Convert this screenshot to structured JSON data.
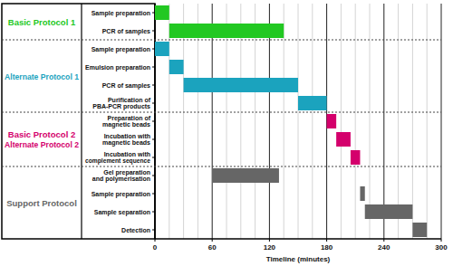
{
  "chart_data": {
    "type": "gantt",
    "x_label": "Timeline (minutes)",
    "xlim": [
      0,
      300
    ],
    "xticks": [
      0,
      60,
      120,
      180,
      240,
      300
    ],
    "grid": true,
    "groups": [
      {
        "name": [
          "Basic Protocol 1"
        ],
        "color": "#22c822",
        "tasks": [
          {
            "name": [
              "Sample preparation"
            ],
            "start": 0,
            "end": 15
          },
          {
            "name": [
              "PCR of samples"
            ],
            "start": 15,
            "end": 135
          }
        ]
      },
      {
        "name": [
          "Alternate Protocol 1"
        ],
        "color": "#1ba3be",
        "tasks": [
          {
            "name": [
              "Sample preparation"
            ],
            "start": 0,
            "end": 15
          },
          {
            "name": [
              "Emulsion preparation"
            ],
            "start": 15,
            "end": 30
          },
          {
            "name": [
              "PCR of samples"
            ],
            "start": 30,
            "end": 150
          },
          {
            "name": [
              "Purification of",
              "PBA-PCR products"
            ],
            "start": 150,
            "end": 180
          }
        ]
      },
      {
        "name": [
          "Basic Protocol 2",
          "Alternate Protocol 2"
        ],
        "color": "#d4006c",
        "tasks": [
          {
            "name": [
              "Preparation of",
              "magnetic beads"
            ],
            "start": 180,
            "end": 190
          },
          {
            "name": [
              "Incubation with",
              "magnetic beads"
            ],
            "start": 190,
            "end": 205
          },
          {
            "name": [
              "Incubation with",
              "complement sequence"
            ],
            "start": 205,
            "end": 215
          }
        ]
      },
      {
        "name": [
          "Support Protocol"
        ],
        "color": "#666666",
        "tasks": [
          {
            "name": [
              "Gel preparation",
              "and polymerisation"
            ],
            "start": 60,
            "end": 130
          },
          {
            "name": [
              "Sample preparation"
            ],
            "start": 215,
            "end": 220
          },
          {
            "name": [
              "Sample separation"
            ],
            "start": 220,
            "end": 270
          },
          {
            "name": [
              "Detection"
            ],
            "start": 270,
            "end": 285
          }
        ]
      }
    ]
  }
}
